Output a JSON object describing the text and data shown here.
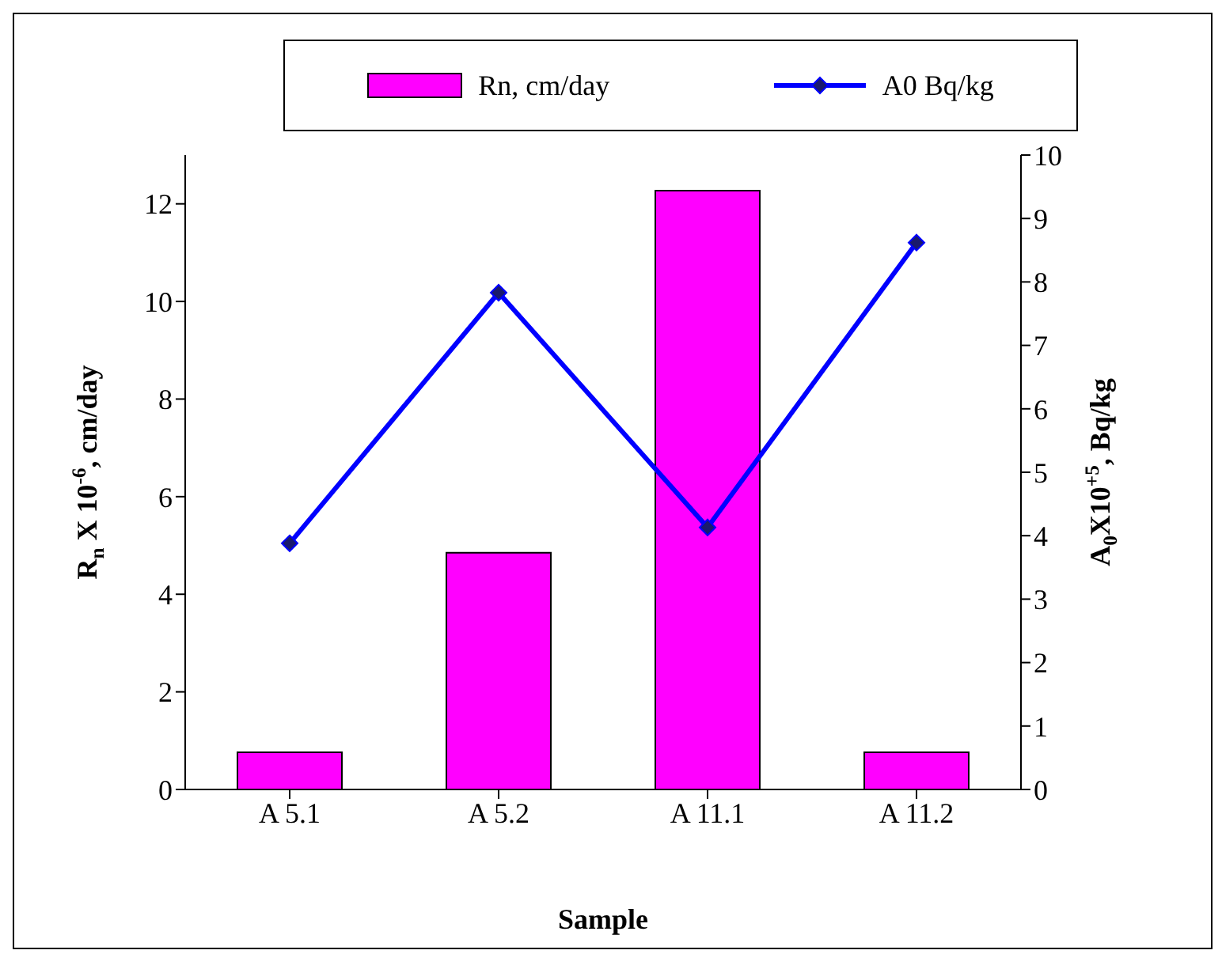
{
  "chart_data": {
    "type": "bar",
    "xlabel": "Sample",
    "ylabel": "R$_{n}$ X 10$^{-6}$, cm/day",
    "y2label": "A$_{0}$X10$^{+5}$, Bq/kg",
    "categories": [
      "A 5.1",
      "A 5.2",
      "A 11.1",
      "A 11.2"
    ],
    "series": [
      {
        "name": "Rn, cm/day",
        "color": "#ff00ff",
        "values": [
          0.76,
          4.85,
          12.27,
          0.76
        ]
      },
      {
        "name": "A0 Bq/kg",
        "type": "line",
        "axis": "y2",
        "color": "#0000ff",
        "values": [
          3.88,
          7.83,
          4.13,
          8.62
        ]
      }
    ],
    "ylim": [
      0,
      13
    ],
    "yticks": [
      0,
      2,
      4,
      6,
      8,
      10,
      12
    ],
    "y2lim": [
      0,
      10
    ],
    "y2ticks": [
      0,
      1,
      2,
      3,
      4,
      5,
      6,
      7,
      8,
      9,
      10
    ],
    "legend": "top",
    "marker": "diamond",
    "grid": false
  }
}
